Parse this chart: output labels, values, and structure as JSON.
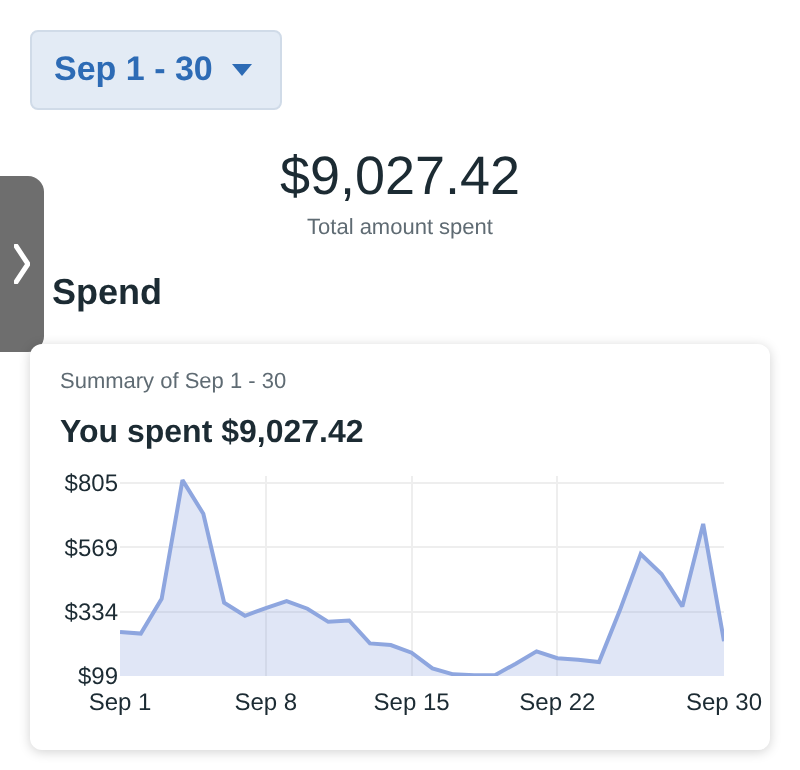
{
  "chart_data": {
    "type": "area",
    "title": "You spent $9,027.42",
    "subtitle": "Summary of Sep 1 - 30",
    "annotations": [
      "Sep 1 - 30",
      "$9,027.42",
      "Total amount spent",
      "Spend"
    ],
    "x": [
      "--09-01",
      "--09-02",
      "--09-03",
      "--09-04",
      "--09-05",
      "--09-06",
      "--09-07",
      "--09-08",
      "--09-09",
      "--09-10",
      "--09-11",
      "--09-12",
      "--09-13",
      "--09-14",
      "--09-15",
      "--09-16",
      "--09-17",
      "--09-18",
      "--09-19",
      "--09-20",
      "--09-21",
      "--09-22",
      "--09-23",
      "--09-24",
      "--09-25",
      "--09-26",
      "--09-27",
      "--09-28",
      "--09-29",
      "--09-30"
    ],
    "series": [
      {
        "color": "#8ea6df",
        "values": [
          260,
          254,
          381,
          815,
          692,
          367,
          319,
          347,
          373,
          345,
          297,
          302,
          218,
          212,
          184,
          127,
          105,
          102,
          102,
          144,
          189,
          164,
          158,
          150,
          339,
          545,
          472,
          353,
          655,
          226
        ]
      }
    ],
    "ylim": [
      99,
      830
    ],
    "yticks": [
      {
        "value": 99,
        "label": "$99"
      },
      {
        "value": 334,
        "label": "$334"
      },
      {
        "value": 569,
        "label": "$569"
      },
      {
        "value": 805,
        "label": "$805"
      }
    ],
    "xlim": [
      "--09-01",
      "--09-30"
    ],
    "xticks": [
      {
        "value": "--09-01",
        "label": "Sep 1"
      },
      {
        "value": "--09-08",
        "label": "Sep 8"
      },
      {
        "value": "--09-15",
        "label": "Sep 15"
      },
      {
        "value": "--09-22",
        "label": "Sep 22"
      },
      {
        "value": "--09-30",
        "label": "Sep 30"
      }
    ],
    "grid": true,
    "legend": false
  }
}
